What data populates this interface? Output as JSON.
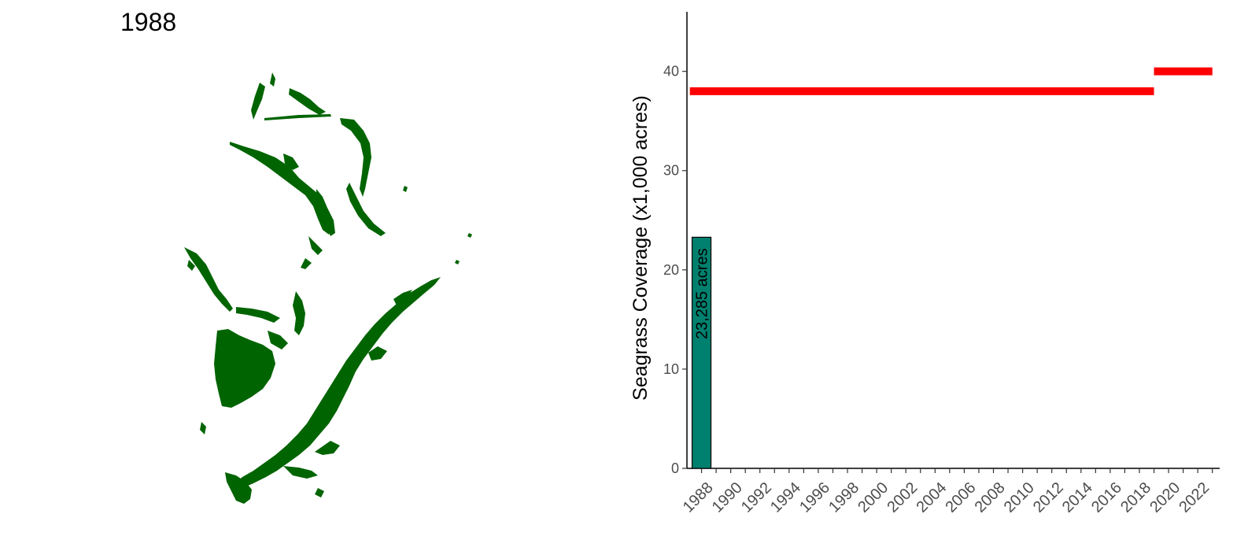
{
  "map": {
    "title": "1988",
    "seagrass_color": "#006400"
  },
  "chart_data": {
    "type": "bar",
    "title": "",
    "xlabel": "",
    "ylabel": "Seagrass Coverage (x1,000 acres)",
    "ylim": [
      0,
      46
    ],
    "yticks": [
      0,
      10,
      20,
      30,
      40
    ],
    "xlim": [
      1987,
      2023.5
    ],
    "x_tick_labels": [
      "1988",
      "1990",
      "1992",
      "1994",
      "1996",
      "1998",
      "2000",
      "2002",
      "2004",
      "2006",
      "2008",
      "2010",
      "2012",
      "2014",
      "2016",
      "2018",
      "2020",
      "2022"
    ],
    "bars": [
      {
        "x": 1988,
        "value": 23.285,
        "label": "23,285 acres",
        "color": "#00806E"
      }
    ],
    "target_lines": [
      {
        "x_start": 1987.2,
        "x_end": 2019.0,
        "value": 38.0,
        "color": "#FF0000"
      },
      {
        "x_start": 2019.0,
        "x_end": 2023.0,
        "value": 40.0,
        "color": "#FF0000"
      }
    ],
    "grid": false
  }
}
